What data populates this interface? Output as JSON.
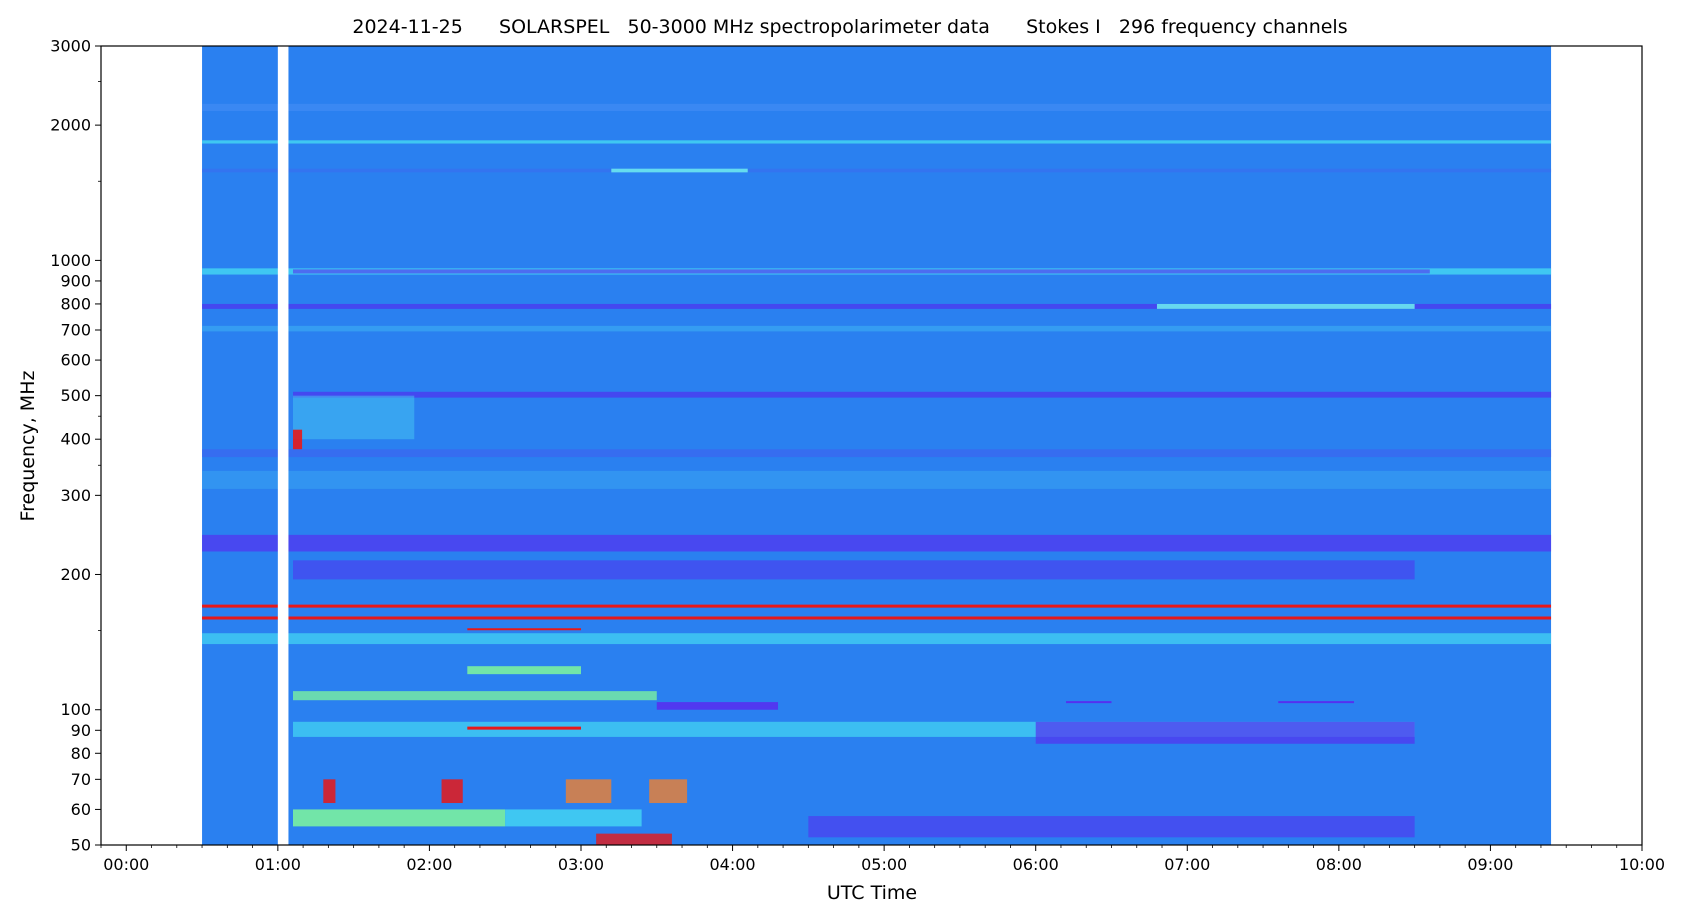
{
  "chart_data": {
    "type": "heatmap",
    "title": "2024-11-25      SOLARSPEL   50-3000 MHz spectropolarimeter data      Stokes I   296 frequency channels",
    "xlabel": "UTC Time",
    "ylabel": "Frequency, MHz",
    "x_axis": {
      "unit": "hours UTC",
      "range": [
        -0.1667,
        10.0
      ],
      "ticks": [
        {
          "value": 0,
          "label": "00:00"
        },
        {
          "value": 1,
          "label": "01:00"
        },
        {
          "value": 2,
          "label": "02:00"
        },
        {
          "value": 3,
          "label": "03:00"
        },
        {
          "value": 4,
          "label": "04:00"
        },
        {
          "value": 5,
          "label": "05:00"
        },
        {
          "value": 6,
          "label": "06:00"
        },
        {
          "value": 7,
          "label": "07:00"
        },
        {
          "value": 8,
          "label": "08:00"
        },
        {
          "value": 9,
          "label": "09:00"
        },
        {
          "value": 10,
          "label": "10:00"
        }
      ]
    },
    "y_axis": {
      "scale": "log",
      "unit": "MHz",
      "range": [
        50,
        3000
      ],
      "ticks": [
        {
          "value": 50,
          "label": "50"
        },
        {
          "value": 60,
          "label": "60"
        },
        {
          "value": 70,
          "label": "70"
        },
        {
          "value": 80,
          "label": "80"
        },
        {
          "value": 90,
          "label": "90"
        },
        {
          "value": 100,
          "label": "100"
        },
        {
          "value": 200,
          "label": "200"
        },
        {
          "value": 300,
          "label": "300"
        },
        {
          "value": 400,
          "label": "400"
        },
        {
          "value": 500,
          "label": "500"
        },
        {
          "value": 600,
          "label": "600"
        },
        {
          "value": 700,
          "label": "700"
        },
        {
          "value": 800,
          "label": "800"
        },
        {
          "value": 900,
          "label": "900"
        },
        {
          "value": 1000,
          "label": "1000"
        },
        {
          "value": 2000,
          "label": "2000"
        },
        {
          "value": 3000,
          "label": "3000"
        }
      ],
      "minor_ticks": [
        150,
        350,
        450,
        1500,
        2500
      ]
    },
    "observation_window": {
      "start": 0.5,
      "end": 9.4
    },
    "data_gap": {
      "start": 1.0,
      "end": 1.07
    },
    "colormap": "rainbow",
    "colors": {
      "background": "#2a80f0",
      "cyan": "#45d8f2",
      "teal": "#3aa8f2",
      "green": "#7af0a0",
      "violet": "#5530f0",
      "red": "#e81818",
      "orange": "#f08030",
      "gap": "#ffffff"
    },
    "bands": [
      {
        "f_low": 2150,
        "f_high": 2230,
        "t_start": 0.5,
        "t_end": 9.4,
        "color": "#4a90f5",
        "opacity": 0.5
      },
      {
        "f_low": 1820,
        "f_high": 1850,
        "t_start": 0.5,
        "t_end": 9.4,
        "color": "#45d8f2",
        "opacity": 0.8
      },
      {
        "f_low": 1570,
        "f_high": 1600,
        "t_start": 0.5,
        "t_end": 9.4,
        "color": "#3a6df0",
        "opacity": 0.6
      },
      {
        "f_low": 1570,
        "f_high": 1600,
        "t_start": 3.2,
        "t_end": 4.1,
        "color": "#6ae8ee",
        "opacity": 0.9
      },
      {
        "f_low": 930,
        "f_high": 960,
        "t_start": 0.5,
        "t_end": 9.4,
        "color": "#45d8f2",
        "opacity": 0.8
      },
      {
        "f_low": 935,
        "f_high": 955,
        "t_start": 1.1,
        "t_end": 8.6,
        "color": "#5530f0",
        "opacity": 0.6
      },
      {
        "f_low": 780,
        "f_high": 800,
        "t_start": 0.5,
        "t_end": 9.4,
        "color": "#5030f0",
        "opacity": 0.7
      },
      {
        "f_low": 780,
        "f_high": 800,
        "t_start": 6.8,
        "t_end": 8.5,
        "color": "#6ae8ee",
        "opacity": 0.9
      },
      {
        "f_low": 695,
        "f_high": 715,
        "t_start": 0.5,
        "t_end": 9.4,
        "color": "#3aa8f2",
        "opacity": 0.7
      },
      {
        "f_low": 495,
        "f_high": 510,
        "t_start": 1.1,
        "t_end": 9.4,
        "color": "#5030f0",
        "opacity": 0.7
      },
      {
        "f_low": 400,
        "f_high": 500,
        "t_start": 1.1,
        "t_end": 1.9,
        "color": "#45c8f2",
        "opacity": 0.5
      },
      {
        "f_low": 365,
        "f_high": 380,
        "t_start": 0.5,
        "t_end": 9.4,
        "color": "#4060f0",
        "opacity": 0.6
      },
      {
        "f_low": 310,
        "f_high": 340,
        "t_start": 0.5,
        "t_end": 9.4,
        "color": "#3aa8f2",
        "opacity": 0.5
      },
      {
        "f_low": 225,
        "f_high": 245,
        "t_start": 0.5,
        "t_end": 9.4,
        "color": "#5530f0",
        "opacity": 0.7
      },
      {
        "f_low": 195,
        "f_high": 215,
        "t_start": 1.1,
        "t_end": 8.5,
        "color": "#5030f0",
        "opacity": 0.55
      },
      {
        "f_low": 140,
        "f_high": 148,
        "t_start": 0.5,
        "t_end": 9.4,
        "color": "#45d8f2",
        "opacity": 0.7
      },
      {
        "f_low": 120,
        "f_high": 125,
        "t_start": 2.25,
        "t_end": 3.0,
        "color": "#7af0a0",
        "opacity": 0.9
      },
      {
        "f_low": 105,
        "f_high": 110,
        "t_start": 1.1,
        "t_end": 3.5,
        "color": "#7af0a0",
        "opacity": 0.8
      },
      {
        "f_low": 100,
        "f_high": 104,
        "t_start": 3.5,
        "t_end": 4.3,
        "color": "#5530f0",
        "opacity": 0.9
      },
      {
        "f_low": 87,
        "f_high": 94,
        "t_start": 1.1,
        "t_end": 8.5,
        "color": "#45d8f2",
        "opacity": 0.7
      },
      {
        "f_low": 84,
        "f_high": 94,
        "t_start": 6.0,
        "t_end": 8.5,
        "color": "#5530f0",
        "opacity": 0.7
      },
      {
        "f_low": 55,
        "f_high": 60,
        "t_start": 1.1,
        "t_end": 2.5,
        "color": "#7af0a0",
        "opacity": 0.9
      },
      {
        "f_low": 55,
        "f_high": 60,
        "t_start": 2.5,
        "t_end": 3.4,
        "color": "#45d8f2",
        "opacity": 0.8
      },
      {
        "f_low": 52,
        "f_high": 58,
        "t_start": 4.5,
        "t_end": 8.5,
        "color": "#5530f0",
        "opacity": 0.6
      },
      {
        "f_low": 62,
        "f_high": 70,
        "t_start": 1.3,
        "t_end": 1.38,
        "color": "#e81818",
        "opacity": 0.85
      },
      {
        "f_low": 62,
        "f_high": 70,
        "t_start": 2.08,
        "t_end": 2.22,
        "color": "#e81818",
        "opacity": 0.85
      },
      {
        "f_low": 62,
        "f_high": 70,
        "t_start": 2.9,
        "t_end": 3.2,
        "color": "#f08030",
        "opacity": 0.8
      },
      {
        "f_low": 62,
        "f_high": 70,
        "t_start": 3.45,
        "t_end": 3.7,
        "color": "#f08030",
        "opacity": 0.8
      },
      {
        "f_low": 50,
        "f_high": 53,
        "t_start": 3.1,
        "t_end": 3.6,
        "color": "#e81818",
        "opacity": 0.8
      },
      {
        "f_low": 380,
        "f_high": 420,
        "t_start": 1.1,
        "t_end": 1.16,
        "color": "#e81818",
        "opacity": 0.9
      }
    ],
    "lines": [
      {
        "f": 170,
        "t_start": 0.5,
        "t_end": 9.4,
        "color": "#e81818",
        "width": 3
      },
      {
        "f": 160,
        "t_start": 0.5,
        "t_end": 9.4,
        "color": "#e81818",
        "width": 3
      },
      {
        "f": 151,
        "t_start": 2.25,
        "t_end": 3.0,
        "color": "#e81818",
        "width": 2
      },
      {
        "f": 91,
        "t_start": 2.25,
        "t_end": 3.0,
        "color": "#e81818",
        "width": 3
      },
      {
        "f": 104,
        "t_start": 6.2,
        "t_end": 6.5,
        "color": "#5530f0",
        "width": 2
      },
      {
        "f": 104,
        "t_start": 7.6,
        "t_end": 8.1,
        "color": "#5530f0",
        "width": 2
      }
    ]
  }
}
